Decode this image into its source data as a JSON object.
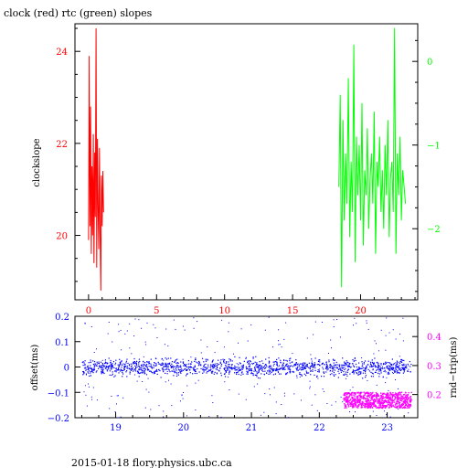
{
  "title": "clock (red) rtc (green) slopes",
  "footer": "2015-01-18 flory.physics.ubc.ca",
  "colors": {
    "red": "#ff0000",
    "green": "#00ff00",
    "blue": "#0000ff",
    "magenta": "#ff00ff",
    "frame": "#000000"
  },
  "chart_data": [
    {
      "type": "line",
      "title": "clock (red) rtc (green) slopes",
      "ylabel": "clockslope",
      "xlim": [
        -1,
        24.2
      ],
      "ylim_left": [
        18.6,
        24.6
      ],
      "ylim_right": [
        -2.85,
        0.45
      ],
      "x_ticks": [
        0,
        5,
        10,
        15,
        20
      ],
      "x_tick_labels": [
        "0",
        "5",
        "10",
        "15",
        "20"
      ],
      "y_ticks_left": [
        20,
        22,
        24
      ],
      "y_tick_labels_left": [
        "20",
        "22",
        "24"
      ],
      "y_ticks_right": [
        -2,
        -1,
        0
      ],
      "y_tick_labels_right": [
        "−2",
        "−1",
        "0"
      ],
      "grid": false,
      "series": [
        {
          "name": "clock",
          "axis": "left",
          "color": "#ff0000",
          "x": [
            0.0,
            0.05,
            0.1,
            0.15,
            0.2,
            0.25,
            0.3,
            0.35,
            0.4,
            0.45,
            0.5,
            0.55,
            0.6,
            0.65,
            0.7,
            0.75,
            0.8,
            0.85,
            0.9,
            0.95,
            1.0,
            1.05,
            1.1
          ],
          "y": [
            19.9,
            23.9,
            20.2,
            22.8,
            19.6,
            21.5,
            20.0,
            22.2,
            19.4,
            21.8,
            20.4,
            24.5,
            19.3,
            22.1,
            20.6,
            19.7,
            21.9,
            20.1,
            18.8,
            21.3,
            20.2,
            21.4,
            20.5
          ]
        },
        {
          "name": "rtc",
          "axis": "right",
          "color": "#00ff00",
          "x": [
            18.4,
            18.5,
            18.6,
            18.7,
            18.8,
            18.9,
            19.0,
            19.1,
            19.2,
            19.3,
            19.4,
            19.5,
            19.6,
            19.7,
            19.8,
            19.9,
            20.0,
            20.1,
            20.2,
            20.3,
            20.4,
            20.5,
            20.6,
            20.7,
            20.8,
            20.9,
            21.0,
            21.1,
            21.2,
            21.3,
            21.4,
            21.5,
            21.6,
            21.7,
            21.8,
            21.9,
            22.0,
            22.1,
            22.2,
            22.3,
            22.4,
            22.5,
            22.6,
            22.7,
            22.8,
            22.9,
            23.0,
            23.1,
            23.2,
            23.3
          ],
          "y": [
            -1.5,
            -0.4,
            -2.7,
            -0.7,
            -1.9,
            -1.1,
            -1.7,
            -0.2,
            -2.1,
            -1.2,
            -1.8,
            0.2,
            -2.4,
            -0.9,
            -1.6,
            -1.0,
            -1.9,
            -0.5,
            -2.2,
            -1.3,
            -1.6,
            -0.8,
            -2.0,
            -1.4,
            -1.1,
            -1.7,
            -0.6,
            -2.3,
            -1.2,
            -1.5,
            -0.9,
            -1.8,
            -1.3,
            -2.0,
            -1.0,
            -1.6,
            -0.7,
            -2.1,
            -1.4,
            -1.2,
            -1.8,
            0.4,
            -2.3,
            -1.1,
            -1.6,
            -0.9,
            -1.9,
            -1.3,
            -1.5,
            -1.7
          ]
        }
      ]
    },
    {
      "type": "scatter",
      "xlim": [
        18.4,
        23.45
      ],
      "ylim_left": [
        -0.2,
        0.2
      ],
      "ylim_right": [
        0.12,
        0.47
      ],
      "ylabel_left": "offset(ms)",
      "ylabel_right": "rnd−trip(ms)",
      "x_ticks": [
        19,
        20,
        21,
        22,
        23
      ],
      "x_tick_labels": [
        "19",
        "20",
        "21",
        "22",
        "23"
      ],
      "y_ticks_left": [
        -0.2,
        -0.1,
        0,
        0.1,
        0.2
      ],
      "y_tick_labels_left": [
        "−0.2",
        "−0.1",
        "0",
        "0.1",
        "0.2"
      ],
      "y_ticks_right": [
        0.2,
        0.3,
        0.4
      ],
      "y_tick_labels_right": [
        "0.2",
        "0.3",
        "0.4"
      ],
      "grid": false,
      "series": [
        {
          "name": "offset",
          "axis": "left",
          "color": "#0000ff",
          "x_range": [
            18.5,
            23.35
          ],
          "y_center": 0.0,
          "y_spread": 0.025,
          "y_outliers_range": [
            -0.2,
            0.2
          ]
        },
        {
          "name": "rnd-trip",
          "axis": "right",
          "color": "#ff00ff",
          "x_range": [
            22.35,
            23.35
          ],
          "y_range": [
            0.155,
            0.21
          ]
        }
      ]
    }
  ]
}
